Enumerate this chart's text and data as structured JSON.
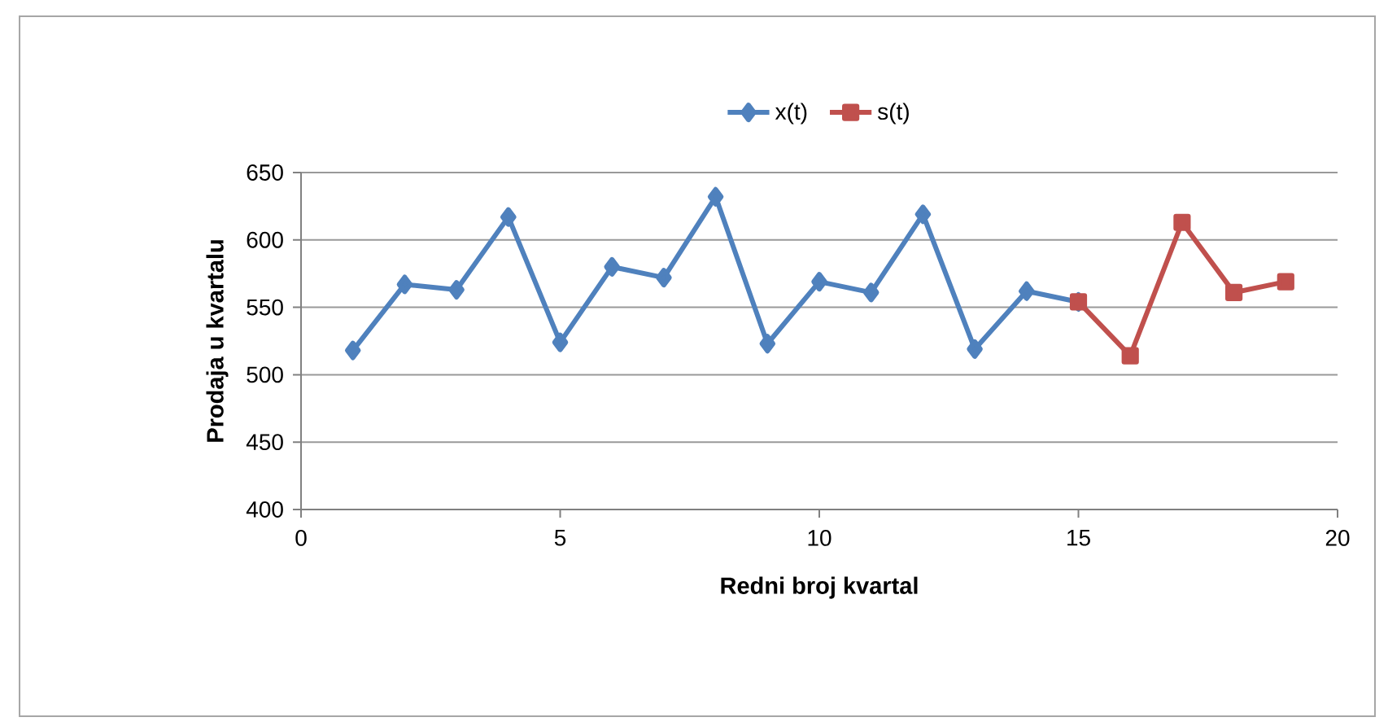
{
  "chart_data": {
    "type": "line",
    "xlabel": "Redni broj kvartal",
    "ylabel": "Prodaja u kvartalu",
    "series": [
      {
        "name": "x(t)",
        "color": "#4f81bd",
        "marker": "diamond",
        "x": [
          1,
          2,
          3,
          4,
          5,
          6,
          7,
          8,
          9,
          10,
          11,
          12,
          13,
          14,
          15
        ],
        "values": [
          518,
          567,
          563,
          617,
          524,
          580,
          572,
          632,
          523,
          569,
          561,
          619,
          519,
          562,
          554
        ]
      },
      {
        "name": "s(t)",
        "color": "#c0504d",
        "marker": "square",
        "x": [
          15,
          16,
          17,
          18,
          19
        ],
        "values": [
          554,
          514,
          613,
          561,
          569
        ]
      }
    ],
    "xlim": [
      0,
      20
    ],
    "xticks": [
      0,
      5,
      10,
      15,
      20
    ],
    "ylim": [
      400,
      650
    ],
    "yticks": [
      400,
      450,
      500,
      550,
      600,
      650
    ],
    "grid": "y",
    "legend": "top",
    "line_style": "solid"
  }
}
